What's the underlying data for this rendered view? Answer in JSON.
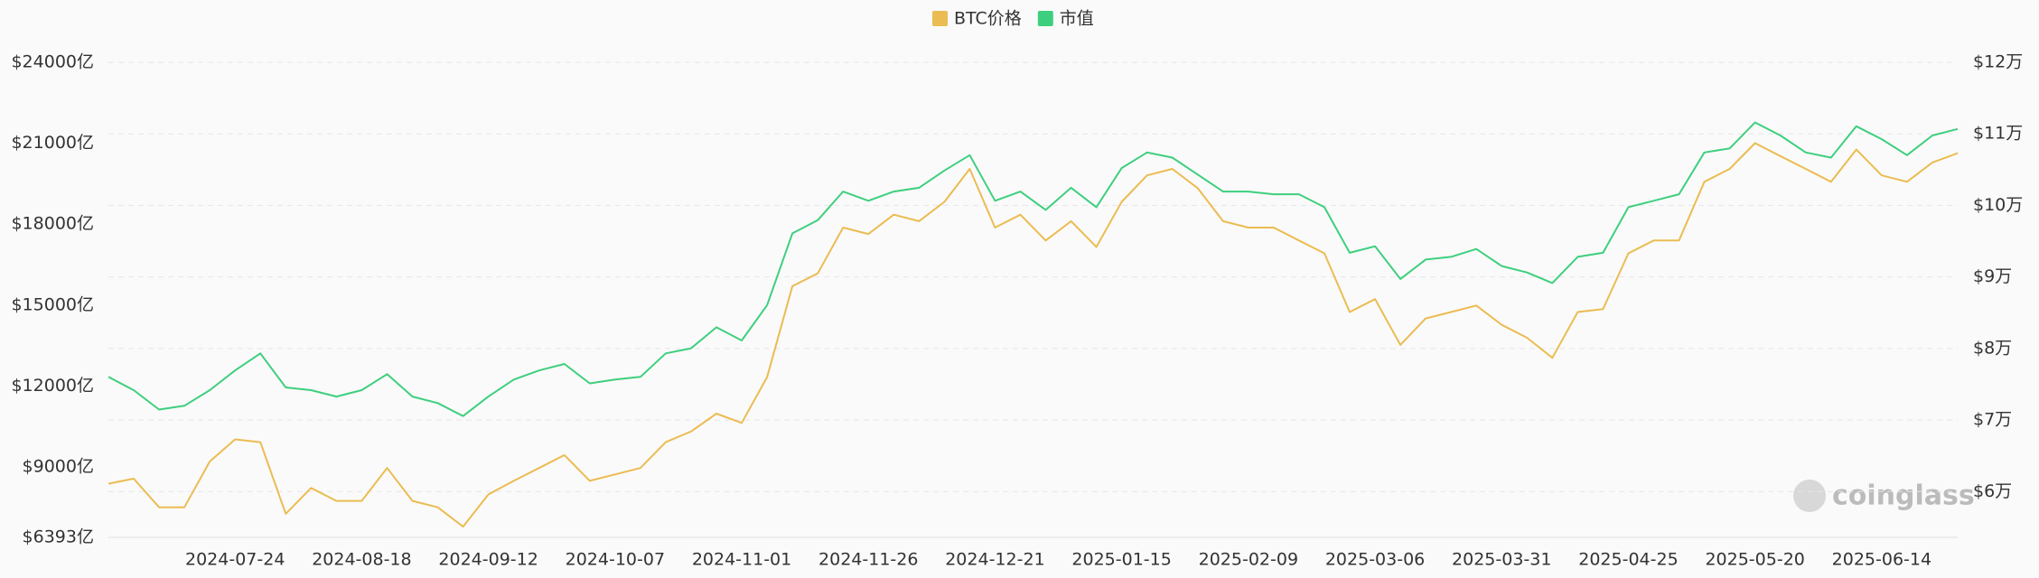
{
  "chart_data": {
    "type": "line",
    "legend_position": "top",
    "watermark": "coinglass",
    "grid": true,
    "categories": [
      null,
      null,
      null,
      null,
      null,
      "2024-07-24",
      null,
      null,
      null,
      null,
      "2024-08-18",
      null,
      null,
      null,
      null,
      "2024-09-12",
      null,
      null,
      null,
      null,
      "2024-10-07",
      null,
      null,
      null,
      null,
      "2024-11-01",
      null,
      null,
      null,
      null,
      "2024-11-26",
      null,
      null,
      null,
      null,
      "2024-12-21",
      null,
      null,
      null,
      null,
      "2025-01-15",
      null,
      null,
      null,
      null,
      "2025-02-09",
      null,
      null,
      null,
      null,
      "2025-03-06",
      null,
      null,
      null,
      null,
      "2025-03-31",
      null,
      null,
      null,
      null,
      "2025-04-25",
      null,
      null,
      null,
      null,
      "2025-05-20",
      null,
      null,
      null,
      null,
      "2025-06-14",
      null,
      null,
      null
    ],
    "series": [
      {
        "name": "BTC价格",
        "color": "#ebbc52",
        "axis": "y2",
        "values": [
          61100,
          61800,
          57800,
          57800,
          64200,
          67300,
          66900,
          56900,
          60500,
          58700,
          58700,
          63300,
          58700,
          57800,
          55100,
          59600,
          61500,
          63300,
          65100,
          61500,
          62400,
          63300,
          66900,
          68400,
          70900,
          69600,
          76000,
          88700,
          90500,
          96900,
          96000,
          98700,
          97800,
          100500,
          105100,
          96900,
          98700,
          95100,
          97800,
          94200,
          100500,
          104200,
          105100,
          102400,
          97800,
          96900,
          96900,
          95100,
          93300,
          85100,
          86900,
          80500,
          84200,
          85100,
          86000,
          83300,
          81500,
          78700,
          85100,
          85500,
          93300,
          95100,
          95100,
          103300,
          105100,
          108700,
          106900,
          105100,
          103300,
          107800,
          104200,
          103300,
          106000,
          107300
        ]
      },
      {
        "name": "市值",
        "color": "#3ecf7e",
        "values": [
          12340,
          11850,
          11130,
          11270,
          11850,
          12580,
          13210,
          11950,
          11850,
          11610,
          11850,
          12440,
          11610,
          11370,
          10890,
          11610,
          12240,
          12580,
          12820,
          12100,
          12240,
          12340,
          13210,
          13400,
          14180,
          13690,
          15000,
          17660,
          18150,
          19210,
          18870,
          19210,
          19350,
          19990,
          20560,
          18870,
          19210,
          18530,
          19350,
          18630,
          20080,
          20660,
          20470,
          19840,
          19210,
          19210,
          19110,
          19110,
          18630,
          16940,
          17180,
          15970,
          16690,
          16790,
          17080,
          16450,
          16210,
          15820,
          16790,
          16940,
          18630,
          18870,
          19110,
          20660,
          20810,
          21770,
          21290,
          20660,
          20470,
          21630,
          21150,
          20560,
          21290,
          21530
        ]
      }
    ],
    "ylim": [
      6393,
      24000
    ],
    "yticks": [
      {
        "value": 6393,
        "label": "$6393亿"
      },
      {
        "value": 9000,
        "label": "$9000亿"
      },
      {
        "value": 12000,
        "label": "$12000亿"
      },
      {
        "value": 15000,
        "label": "$15000亿"
      },
      {
        "value": 18000,
        "label": "$18000亿"
      },
      {
        "value": 21000,
        "label": "$21000亿"
      },
      {
        "value": 24000,
        "label": "$24000亿"
      }
    ],
    "y2lim": [
      53600,
      120000
    ],
    "y2ticks": [
      {
        "value": 60000,
        "label": "$6万"
      },
      {
        "value": 70000,
        "label": "$7万"
      },
      {
        "value": 80000,
        "label": "$8万"
      },
      {
        "value": 90000,
        "label": "$9万"
      },
      {
        "value": 100000,
        "label": "$10万"
      },
      {
        "value": 110000,
        "label": "$11万"
      },
      {
        "value": 120000,
        "label": "$12万"
      }
    ]
  }
}
